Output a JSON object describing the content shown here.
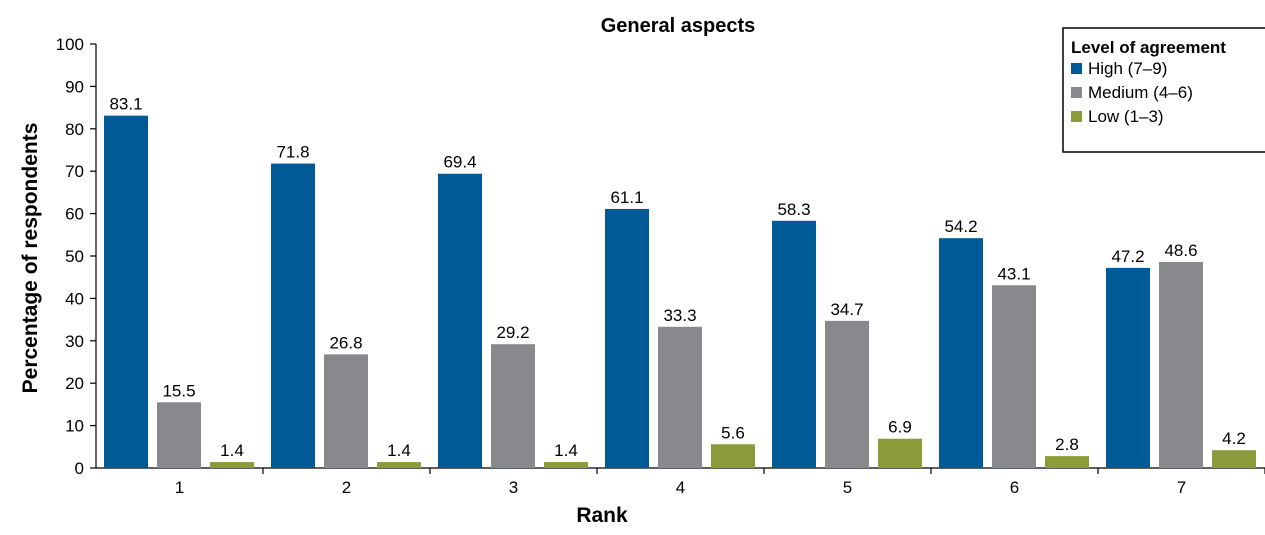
{
  "chart_data": {
    "type": "bar",
    "title": "General aspects",
    "xlabel": "Rank",
    "ylabel": "Percentage of respondents",
    "categories": [
      "1",
      "2",
      "3",
      "4",
      "5",
      "6",
      "7"
    ],
    "ylim": [
      0,
      100
    ],
    "yticks": [
      0,
      10,
      20,
      30,
      40,
      50,
      60,
      70,
      80,
      90,
      100
    ],
    "grid": false,
    "legend": {
      "title": "Level of agreement",
      "position": "top-right"
    },
    "series": [
      {
        "name": "High (7–9)",
        "color": "#005a96",
        "values": [
          83.1,
          71.8,
          69.4,
          61.1,
          58.3,
          54.2,
          47.2
        ]
      },
      {
        "name": "Medium (4–6)",
        "color": "#87898c",
        "values": [
          15.5,
          26.8,
          29.2,
          33.3,
          34.7,
          43.1,
          48.6
        ]
      },
      {
        "name": "Low (1–3)",
        "color": "#8c9b3a",
        "values": [
          1.4,
          1.4,
          1.4,
          5.6,
          6.9,
          2.8,
          4.2
        ]
      }
    ]
  }
}
